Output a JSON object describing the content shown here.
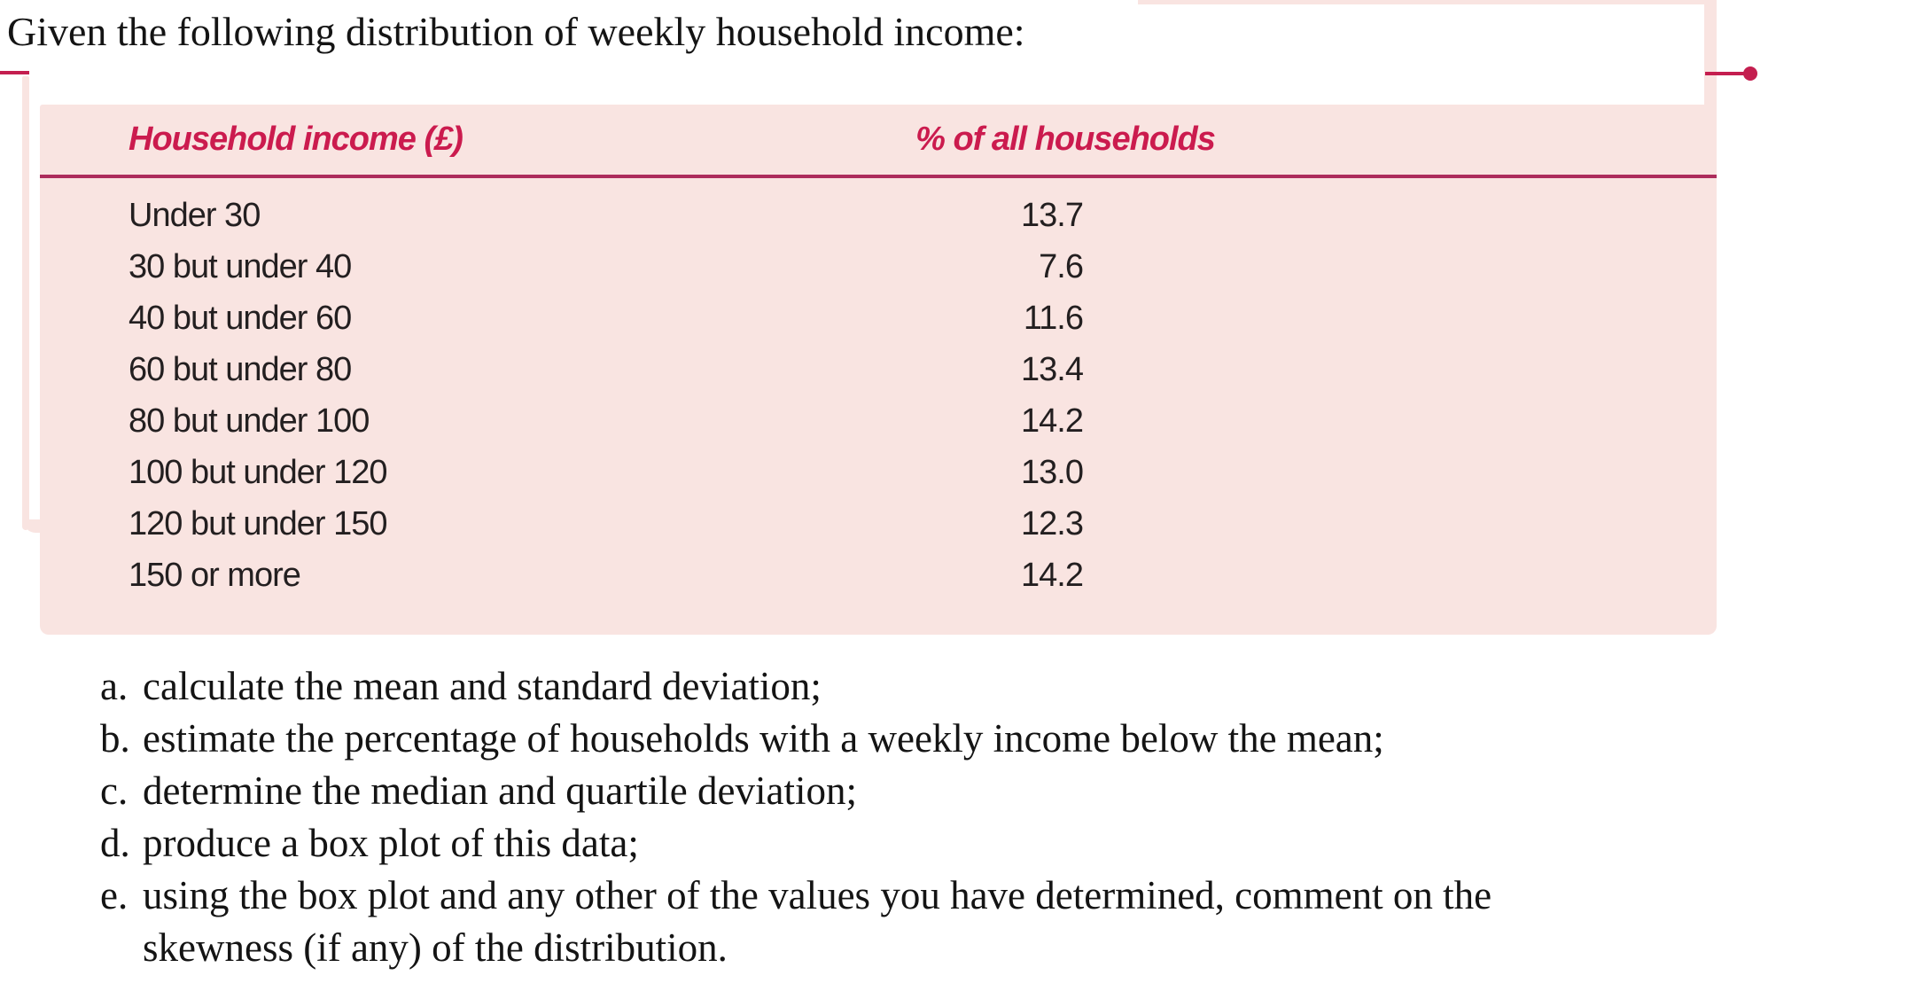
{
  "page": {
    "title": "Given the following distribution of weekly household income:"
  },
  "table": {
    "columns": [
      "Household income (£)",
      "% of all households"
    ],
    "rows": [
      {
        "label": "Under 30",
        "value": "13.7"
      },
      {
        "label": "30 but under 40",
        "value": "7.6"
      },
      {
        "label": "40 but under 60",
        "value": "11.6"
      },
      {
        "label": "60 but under 80",
        "value": "13.4"
      },
      {
        "label": "80 but under 100",
        "value": "14.2"
      },
      {
        "label": "100 but under 120",
        "value": "13.0"
      },
      {
        "label": "120 but under 150",
        "value": "12.3"
      },
      {
        "label": "150 or more",
        "value": "14.2"
      }
    ]
  },
  "questions": {
    "items": [
      {
        "marker": "a.",
        "line1": "calculate the mean and standard deviation;"
      },
      {
        "marker": "b.",
        "line1": "estimate the percentage of households with a weekly income below the mean;"
      },
      {
        "marker": "c.",
        "line1": "determine the median and quartile deviation;"
      },
      {
        "marker": "d.",
        "line1": "produce a box plot of this data;"
      },
      {
        "marker": "e.",
        "line1": "using the box plot and any other of the values you have determined, comment on the",
        "line2": "skewness (if any) of the distribution."
      }
    ]
  },
  "colors": {
    "panel_pink": "#f9e4e1",
    "accent_crimson": "#c41e4f",
    "header_text_crimson": "#cb1b4e",
    "table_rule_crimson": "#ad2c5c",
    "body_text": "#1a1a1a"
  }
}
